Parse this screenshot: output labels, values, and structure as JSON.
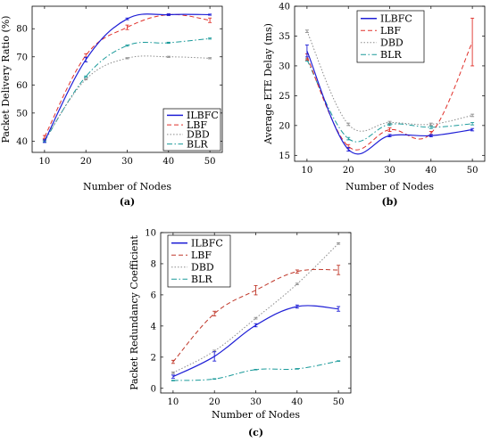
{
  "chart_data": [
    {
      "type": "line",
      "panel_label": "(a)",
      "x": [
        10,
        20,
        30,
        40,
        50
      ],
      "xlim": [
        7,
        53
      ],
      "ylim": [
        36,
        88
      ],
      "xticks": [
        10,
        20,
        30,
        40,
        50
      ],
      "yticks": [
        40,
        50,
        60,
        70,
        80
      ],
      "xlabel": "Number of Nodes",
      "ylabel": "Packet Delivery Ratio (%)",
      "legend_position": "bottom-right",
      "series": [
        {
          "name": "ILBFC",
          "color": "#1f1fd6",
          "dash": "solid",
          "values": [
            40.0,
            69.0,
            83.5,
            85.0,
            85.0
          ],
          "errors": [
            0.5,
            0.8,
            0.3,
            0.3,
            0.2
          ]
        },
        {
          "name": "LBF",
          "color": "#e0302a",
          "dash": "dashed",
          "values": [
            41.5,
            70.5,
            80.5,
            85.0,
            83.0
          ],
          "errors": [
            0.5,
            0.6,
            0.8,
            0.3,
            0.8
          ]
        },
        {
          "name": "DBD",
          "color": "#8c8c8c",
          "dash": "dotted",
          "values": [
            40.5,
            62.0,
            69.5,
            70.0,
            69.5
          ],
          "errors": [
            0.2,
            0.2,
            0.2,
            0.2,
            0.2
          ]
        },
        {
          "name": "BLR",
          "color": "#1a9a9a",
          "dash": "dashdot",
          "values": [
            40.0,
            63.0,
            74.0,
            75.0,
            76.5
          ],
          "errors": [
            0.2,
            0.2,
            0.2,
            0.2,
            0.2
          ]
        }
      ]
    },
    {
      "type": "line",
      "panel_label": "(b)",
      "x": [
        10,
        20,
        30,
        40,
        50
      ],
      "xlim": [
        7,
        53
      ],
      "ylim": [
        14,
        40
      ],
      "xticks": [
        10,
        20,
        30,
        40,
        50
      ],
      "yticks": [
        15,
        20,
        25,
        30,
        35,
        40
      ],
      "xlabel": "Number of Nodes",
      "ylabel": "Average ETE Delay (ms)",
      "legend_position": "top-right",
      "series": [
        {
          "name": "ILBFC",
          "color": "#1f1fd6",
          "dash": "solid",
          "values": [
            32.5,
            16.0,
            18.3,
            18.3,
            19.3
          ],
          "errors": [
            1.0,
            0.3,
            0.2,
            0.2,
            0.2
          ]
        },
        {
          "name": "LBF",
          "color": "#e0302a",
          "dash": "dashed",
          "values": [
            31.5,
            16.5,
            19.3,
            18.7,
            34.0
          ],
          "errors": [
            0.5,
            0.3,
            0.3,
            0.3,
            4.0
          ]
        },
        {
          "name": "DBD",
          "color": "#8c8c8c",
          "dash": "dotted",
          "values": [
            35.8,
            20.2,
            20.5,
            20.2,
            21.7
          ],
          "errors": [
            0.2,
            0.2,
            0.2,
            0.2,
            0.2
          ]
        },
        {
          "name": "BLR",
          "color": "#1a9a9a",
          "dash": "dashdot",
          "values": [
            31.0,
            17.8,
            20.2,
            19.7,
            20.3
          ],
          "errors": [
            0.2,
            0.2,
            0.2,
            0.2,
            0.2
          ]
        }
      ]
    },
    {
      "type": "line",
      "panel_label": "(c)",
      "x": [
        10,
        20,
        30,
        40,
        50
      ],
      "xlim": [
        7,
        53
      ],
      "ylim": [
        -0.3,
        10
      ],
      "xticks": [
        10,
        20,
        30,
        40,
        50
      ],
      "yticks": [
        0,
        2,
        4,
        6,
        8,
        10
      ],
      "xlabel": "Number of Nodes",
      "ylabel": "Packet Redundancy Coefficient",
      "legend_position": "top-left",
      "series": [
        {
          "name": "ILBFC",
          "color": "#1f1fd6",
          "dash": "solid",
          "values": [
            0.75,
            2.05,
            4.05,
            5.25,
            5.1
          ],
          "errors": [
            0.1,
            0.3,
            0.1,
            0.1,
            0.15
          ]
        },
        {
          "name": "LBF",
          "color": "#c0392b",
          "dash": "dashed",
          "values": [
            1.7,
            4.8,
            6.3,
            7.5,
            7.6
          ],
          "errors": [
            0.1,
            0.15,
            0.3,
            0.1,
            0.3
          ]
        },
        {
          "name": "DBD",
          "color": "#8c8c8c",
          "dash": "dotted",
          "values": [
            1.0,
            2.4,
            4.5,
            6.7,
            9.3
          ],
          "errors": [
            0.05,
            0.05,
            0.05,
            0.05,
            0.05
          ]
        },
        {
          "name": "BLR",
          "color": "#1a9a9a",
          "dash": "dashdot",
          "values": [
            0.5,
            0.6,
            1.2,
            1.25,
            1.75
          ],
          "errors": [
            0.02,
            0.02,
            0.02,
            0.02,
            0.02
          ]
        }
      ]
    }
  ]
}
